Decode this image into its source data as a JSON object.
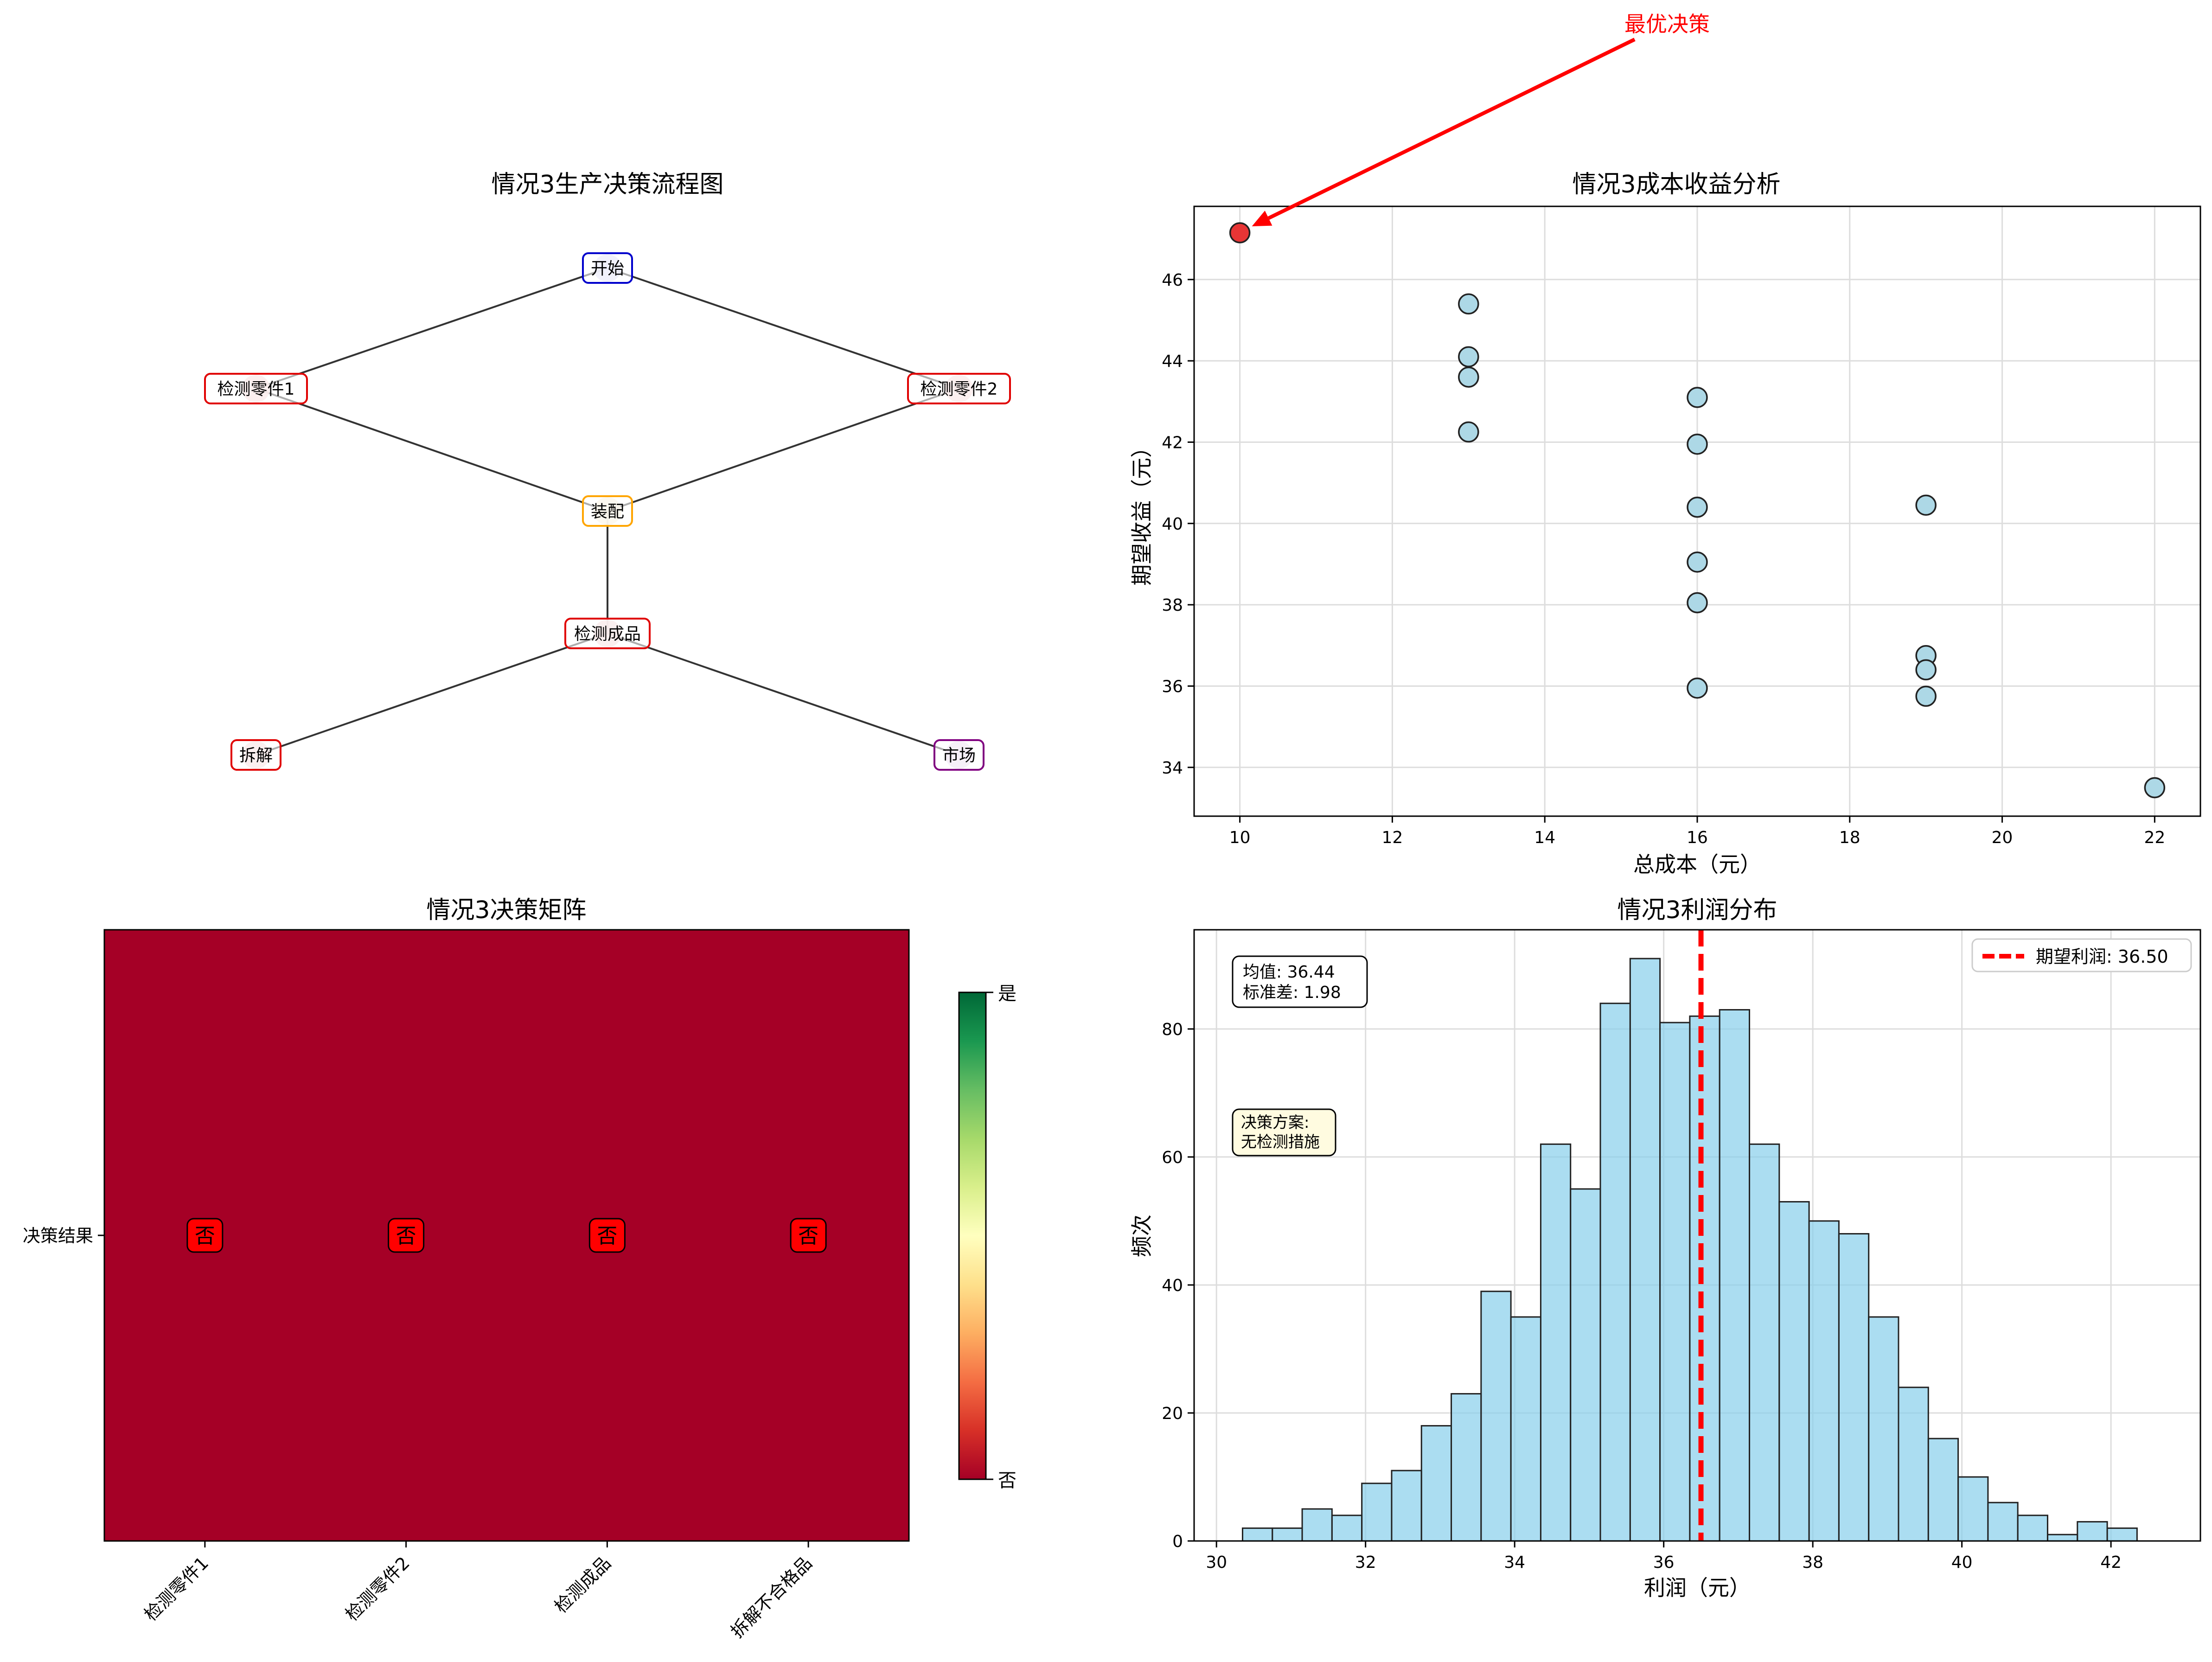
{
  "colors": {
    "edge": "#333333",
    "heat_no": "#a50026",
    "scatter_fill": "#add8e6",
    "scatter_best": "#e83535",
    "hist_fill": "#87ceeb",
    "expected_line": "#ff0000",
    "annotation": "#ff0000",
    "grid": "#dddddd"
  },
  "flow": {
    "title": "情况3生产决策流程图",
    "nodes": [
      {
        "label": "开始",
        "color": "#0000cc",
        "fill": "#d9d9f5"
      },
      {
        "label": "检测零件1",
        "color": "#e00000",
        "fill": "#f3d3d3"
      },
      {
        "label": "检测零件2",
        "color": "#e00000",
        "fill": "#f3d3d3"
      },
      {
        "label": "装配",
        "color": "#ffa500",
        "fill": "#f7ecd3"
      },
      {
        "label": "检测成品",
        "color": "#e00000",
        "fill": "#f3d3d3"
      },
      {
        "label": "拆解",
        "color": "#e00000",
        "fill": "#f3d3d3"
      },
      {
        "label": "市场",
        "color": "#800080",
        "fill": "#e6d3ec"
      }
    ],
    "edges": [
      [
        0,
        1
      ],
      [
        0,
        2
      ],
      [
        1,
        3
      ],
      [
        2,
        3
      ],
      [
        3,
        4
      ],
      [
        4,
        5
      ],
      [
        4,
        6
      ]
    ]
  },
  "chart_data": [
    {
      "type": "scatter",
      "title": "情况3成本收益分析",
      "xlabel": "总成本（元）",
      "ylabel": "期望收益（元）",
      "xlim": [
        9.4,
        22.6
      ],
      "ylim": [
        32.8,
        47.8
      ],
      "xticks": [
        10,
        12,
        14,
        16,
        18,
        20,
        22
      ],
      "yticks": [
        34,
        36,
        38,
        40,
        42,
        44,
        46
      ],
      "grid": true,
      "points": [
        {
          "x": 10,
          "y": 47.15,
          "best": true
        },
        {
          "x": 13,
          "y": 45.4
        },
        {
          "x": 13,
          "y": 44.1
        },
        {
          "x": 13,
          "y": 43.6
        },
        {
          "x": 13,
          "y": 42.25
        },
        {
          "x": 16,
          "y": 43.1
        },
        {
          "x": 16,
          "y": 41.95
        },
        {
          "x": 16,
          "y": 40.4
        },
        {
          "x": 16,
          "y": 39.05
        },
        {
          "x": 16,
          "y": 38.05
        },
        {
          "x": 16,
          "y": 35.95
        },
        {
          "x": 19,
          "y": 40.45
        },
        {
          "x": 19,
          "y": 36.75
        },
        {
          "x": 19,
          "y": 36.4
        },
        {
          "x": 19,
          "y": 35.75
        },
        {
          "x": 22,
          "y": 33.5
        }
      ],
      "annotation": "最优决策"
    },
    {
      "type": "heatmap",
      "title": "情况3决策矩阵",
      "row_labels": [
        "决策结果"
      ],
      "col_labels": [
        "检测零件1",
        "检测零件2",
        "检测成品",
        "拆解不合格品"
      ],
      "values": [
        [
          0,
          0,
          0,
          0
        ]
      ],
      "cell_text": [
        "否",
        "否",
        "否",
        "否"
      ],
      "colorbar_ticks": [
        "是",
        "否"
      ],
      "colormap": "RdYlGn"
    },
    {
      "type": "bar",
      "title": "情况3利润分布",
      "xlabel": "利润（元）",
      "ylabel": "频次",
      "xlim": [
        29.7,
        43.2
      ],
      "ylim": [
        0,
        95.5
      ],
      "xticks": [
        30,
        32,
        34,
        36,
        38,
        40,
        42
      ],
      "yticks": [
        0,
        20,
        40,
        60,
        80
      ],
      "bin_start": 30.35,
      "bin_width": 0.4,
      "counts": [
        2,
        2,
        5,
        4,
        9,
        11,
        18,
        23,
        39,
        35,
        62,
        55,
        84,
        91,
        81,
        82,
        83,
        62,
        53,
        50,
        48,
        35,
        24,
        16,
        10,
        6,
        4,
        1,
        3,
        2
      ],
      "expected_line": 36.5,
      "legend": "期望利润: 36.50",
      "stats_text": [
        "均值: 36.44",
        "标准差: 1.98"
      ],
      "decision_text": [
        "决策方案:",
        "无检测措施"
      ],
      "grid": true
    }
  ]
}
